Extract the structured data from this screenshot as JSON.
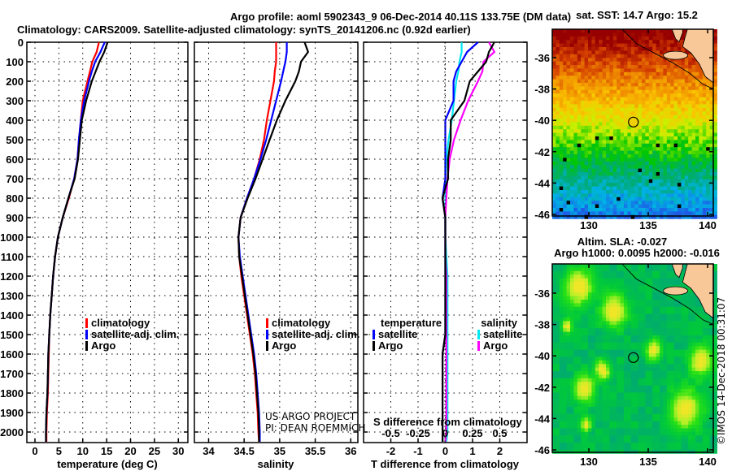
{
  "title_line1": "Argo profile: aoml 5902343_9 06-Dec-2014 40.11S 133.75E (DM data)",
  "title_line2": "Climatology: CARS2009. Satellite-adjusted climatology: synTS_20141206.nc (0.92d earlier)",
  "credit_line1": "US ARGO PROJECT",
  "credit_line2": "PI: DEAN ROEMMICH",
  "imos_stamp": "©IMOS 14-Dec-2018 00:31:07",
  "colors": {
    "climatology": "#ff0000",
    "satellite": "#0000ff",
    "argo": "#000000",
    "sal_satellite": "#00e8f0",
    "sal_argo": "#ff00ff"
  },
  "chart_data": [
    {
      "type": "line",
      "name": "temperature",
      "xlabel": "temperature (deg C)",
      "ylabel": "",
      "xlim": [
        -1.7,
        32
      ],
      "ylim": [
        2055,
        0
      ],
      "xticks": [
        0,
        5,
        10,
        15,
        20,
        25,
        30
      ],
      "yticks": [
        0,
        100,
        200,
        300,
        400,
        500,
        600,
        700,
        800,
        900,
        1000,
        1100,
        1200,
        1300,
        1400,
        1500,
        1600,
        1700,
        1800,
        1900,
        2000
      ],
      "grid": true,
      "legend": [
        "climatology",
        "satellite-adj. clim.",
        "Argo"
      ],
      "depth": [
        0,
        50,
        100,
        150,
        200,
        300,
        400,
        500,
        600,
        700,
        800,
        900,
        1000,
        1100,
        1200,
        1300,
        1400,
        1500,
        1600,
        1700,
        1800,
        1900,
        2000,
        2050
      ],
      "series": [
        {
          "name": "climatology",
          "values": [
            13.4,
            12.9,
            12.0,
            11.5,
            11.0,
            10.0,
            9.6,
            9.2,
            8.9,
            8.2,
            7.1,
            5.8,
            4.8,
            4.2,
            3.8,
            3.5,
            3.2,
            3.0,
            2.9,
            2.8,
            2.7,
            2.5,
            2.4,
            2.4
          ]
        },
        {
          "name": "satellite-adj. clim.",
          "values": [
            14.6,
            13.7,
            12.6,
            11.9,
            11.3,
            10.3,
            9.6,
            9.2,
            8.9,
            8.2,
            7.0,
            5.8,
            4.8,
            4.2,
            3.8,
            3.5,
            3.2,
            3.0,
            2.8,
            2.7,
            2.6,
            2.4,
            2.3,
            2.3
          ]
        },
        {
          "name": "Argo",
          "values": [
            15.2,
            14.5,
            13.5,
            12.7,
            11.9,
            10.7,
            9.8,
            9.4,
            9.0,
            8.3,
            7.0,
            5.8,
            4.8,
            4.2,
            3.8,
            3.5,
            3.2,
            3.0,
            2.8,
            2.7,
            2.6,
            2.4,
            2.3,
            2.3
          ]
        }
      ]
    },
    {
      "type": "line",
      "name": "salinity",
      "xlabel": "salinity",
      "xlim": [
        33.8,
        36.1
      ],
      "ylim": [
        2055,
        0
      ],
      "xticks": [
        34,
        34.5,
        35,
        35.5,
        36
      ],
      "grid": true,
      "legend": [
        "climatology",
        "satellite-adj. clim.",
        "Argo"
      ],
      "depth": [
        0,
        50,
        100,
        150,
        200,
        300,
        400,
        500,
        600,
        700,
        800,
        900,
        1000,
        1100,
        1200,
        1300,
        1400,
        1500,
        1600,
        1700,
        1800,
        1900,
        2000,
        2050
      ],
      "series": [
        {
          "name": "climatology",
          "values": [
            34.95,
            34.95,
            34.95,
            34.93,
            34.92,
            34.87,
            34.82,
            34.78,
            34.72,
            34.64,
            34.54,
            34.45,
            34.42,
            34.43,
            34.46,
            34.5,
            34.54,
            34.58,
            34.62,
            34.65,
            34.67,
            34.69,
            34.7,
            34.71
          ]
        },
        {
          "name": "satellite-adj. clim.",
          "values": [
            35.1,
            35.1,
            35.08,
            35.05,
            35.02,
            34.95,
            34.88,
            34.81,
            34.73,
            34.64,
            34.54,
            34.45,
            34.42,
            34.44,
            34.48,
            34.52,
            34.56,
            34.6,
            34.64,
            34.67,
            34.69,
            34.71,
            34.72,
            34.72
          ]
        },
        {
          "name": "Argo",
          "values": [
            35.35,
            35.4,
            35.3,
            35.27,
            35.22,
            35.08,
            34.96,
            34.86,
            34.76,
            34.66,
            34.55,
            34.45,
            34.42,
            34.43,
            34.47,
            34.51,
            34.55,
            34.59,
            34.63,
            34.66,
            34.68,
            34.7,
            34.71,
            34.71
          ]
        }
      ]
    },
    {
      "type": "line",
      "name": "differences",
      "xlabel": "T difference from climatology",
      "s_label": "S difference from climatology",
      "xlim": [
        -3,
        3
      ],
      "s_xlim": [
        -0.75,
        0.75
      ],
      "xticks": [
        -2,
        -1,
        0,
        1,
        2
      ],
      "s_xticks": [
        -0.5,
        -0.25,
        0,
        0.25,
        0.5
      ],
      "s_xtick_labels": [
        "-0.5",
        "-0.25",
        "0",
        "0.25",
        "0.5"
      ],
      "legend_temperature": {
        "title": "temperature",
        "items": [
          "satellite",
          "Argo"
        ]
      },
      "legend_salinity": {
        "title": "salinity",
        "items": [
          "satellite",
          "Argo"
        ]
      },
      "grid": true
    }
  ],
  "maps": {
    "sst": {
      "title": "sat. SST: 14.7 Argo: 15.2",
      "lat_ticks": [
        "-36",
        "-38",
        "-40",
        "-42",
        "-44",
        "-46"
      ],
      "lon_ticks": [
        "130",
        "135",
        "140"
      ],
      "float_lon": 133.75,
      "float_lat": -40.11
    },
    "sla": {
      "title_line1": "Altim. SLA: -0.027",
      "title_line2": "Argo h1000: 0.0095 h2000: -0.016",
      "lat_ticks": [
        "-36",
        "-38",
        "-40",
        "-42",
        "-44",
        "-46"
      ],
      "lon_ticks": [
        "130",
        "135",
        "140"
      ],
      "float_lon": 133.75,
      "float_lat": -40.11
    }
  }
}
